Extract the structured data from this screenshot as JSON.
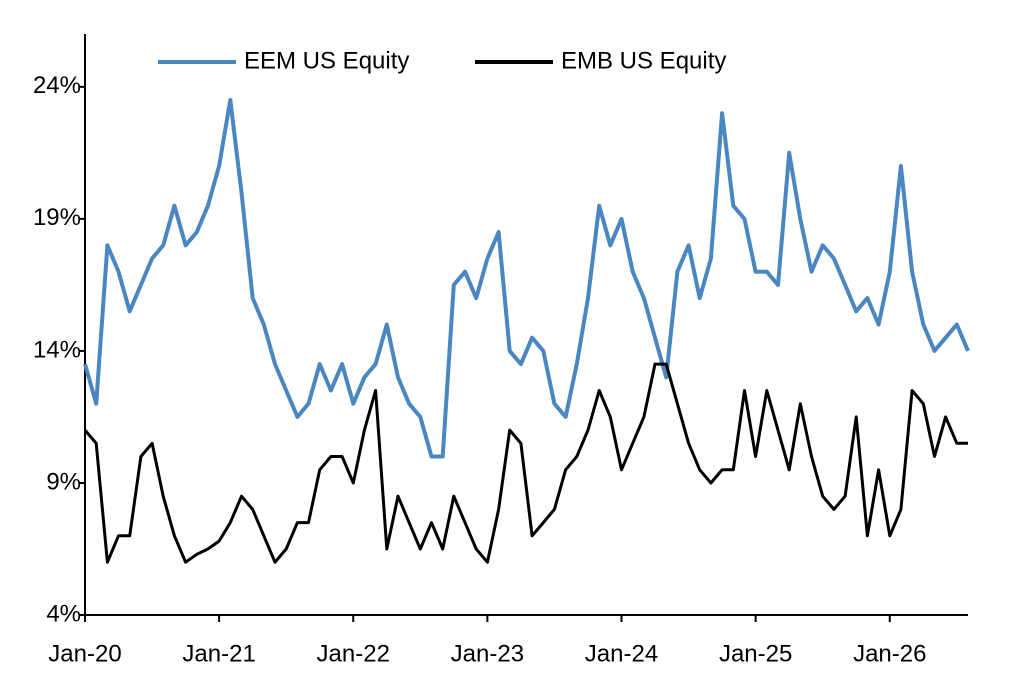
{
  "chart_data": {
    "type": "line",
    "x": [
      "2020-01",
      "2020-02",
      "2020-03",
      "2020-04",
      "2020-05",
      "2020-06",
      "2020-07",
      "2020-08",
      "2020-09",
      "2020-10",
      "2020-11",
      "2020-12",
      "2021-01",
      "2021-02",
      "2021-03",
      "2021-04",
      "2021-05",
      "2021-06",
      "2021-07",
      "2021-08",
      "2021-09",
      "2021-10",
      "2021-11",
      "2021-12",
      "2022-01",
      "2022-02",
      "2022-03",
      "2022-04",
      "2022-05",
      "2022-06",
      "2022-07",
      "2022-08",
      "2022-09",
      "2022-10",
      "2022-11",
      "2022-12",
      "2023-01",
      "2023-02",
      "2023-03",
      "2023-04",
      "2023-05",
      "2023-06",
      "2023-07",
      "2023-08",
      "2023-09",
      "2023-10",
      "2023-11",
      "2023-12",
      "2024-01",
      "2024-02",
      "2024-03",
      "2024-04",
      "2024-05",
      "2024-06",
      "2024-07",
      "2024-08",
      "2024-09",
      "2024-10",
      "2024-11",
      "2024-12",
      "2025-01",
      "2025-02",
      "2025-03",
      "2025-04",
      "2025-05",
      "2025-06",
      "2025-07",
      "2025-08",
      "2025-09",
      "2025-10",
      "2025-11",
      "2025-12",
      "2026-01",
      "2026-02",
      "2026-03",
      "2026-04",
      "2026-05",
      "2026-06",
      "2026-07",
      "2026-08"
    ],
    "series": [
      {
        "name": "EEM US Equity",
        "color": "#4a86c0",
        "values": [
          13.5,
          12,
          18,
          17,
          15.5,
          16.5,
          17.5,
          18,
          19.5,
          18,
          18.5,
          19.5,
          21,
          23.5,
          20,
          16,
          15,
          13.5,
          12.5,
          11.5,
          12,
          13.5,
          12.5,
          13.5,
          12,
          13,
          13.5,
          15,
          13,
          12,
          11.5,
          10,
          10,
          16.5,
          17,
          16,
          17.5,
          18.5,
          14,
          13.5,
          14.5,
          14,
          12,
          11.5,
          13.5,
          16,
          19.5,
          18,
          19,
          17,
          16,
          14.5,
          13,
          17,
          18,
          16,
          17.5,
          23,
          19.5,
          19,
          17,
          17,
          16.5,
          21.5,
          19,
          17,
          18,
          17.5,
          16.5,
          15.5,
          16,
          15,
          17,
          21,
          17,
          15,
          14,
          14.5,
          15,
          14
        ]
      },
      {
        "name": "EMB US Equity",
        "color": "#000000",
        "values": [
          11,
          10.5,
          6,
          7,
          7,
          10,
          10.5,
          8.5,
          7,
          6,
          6.3,
          6.5,
          6.8,
          7.5,
          8.5,
          8,
          7,
          6,
          6.5,
          7.5,
          7.5,
          9.5,
          10,
          10,
          9,
          11,
          12.5,
          6.5,
          8.5,
          7.5,
          6.5,
          7.5,
          6.5,
          8.5,
          7.5,
          6.5,
          6,
          8,
          11,
          10.5,
          7,
          7.5,
          8,
          9.5,
          10,
          11,
          12.5,
          11.5,
          9.5,
          10.5,
          11.5,
          13.5,
          13.5,
          12,
          10.5,
          9.5,
          9,
          9.5,
          9.5,
          12.5,
          10,
          12.5,
          11,
          9.5,
          12,
          10,
          8.5,
          8,
          8.5,
          11.5,
          7,
          9.5,
          7,
          8,
          12.5,
          12,
          10,
          11.5,
          10.5,
          10.5
        ]
      }
    ],
    "xlim": [
      "2020-01",
      "2026-08"
    ],
    "xticks": [
      {
        "value": "2020-01",
        "label": "Jan-20"
      },
      {
        "value": "2021-01",
        "label": "Jan-21"
      },
      {
        "value": "2022-01",
        "label": "Jan-22"
      },
      {
        "value": "2023-01",
        "label": "Jan-23"
      },
      {
        "value": "2024-01",
        "label": "Jan-24"
      },
      {
        "value": "2025-01",
        "label": "Jan-25"
      },
      {
        "value": "2026-01",
        "label": "Jan-26"
      }
    ],
    "ylim": [
      4,
      26
    ],
    "yticks": [
      {
        "value": 4,
        "label": "4%"
      },
      {
        "value": 9,
        "label": "9%"
      },
      {
        "value": 14,
        "label": "14%"
      },
      {
        "value": 19,
        "label": "19%"
      },
      {
        "value": 24,
        "label": "24%"
      }
    ],
    "legend": "top"
  }
}
